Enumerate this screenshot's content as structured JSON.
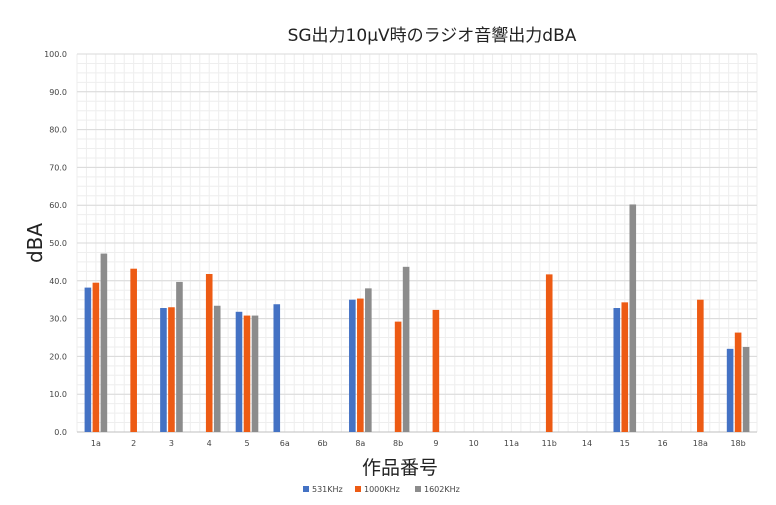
{
  "chart_data": {
    "type": "bar",
    "title": "SG出力10μV時のラジオ音響出力dBA",
    "xlabel": "作品番号",
    "ylabel": "dBA",
    "ylim": [
      0,
      100
    ],
    "yticks": [
      "0.0",
      "10.0",
      "20.0",
      "30.0",
      "40.0",
      "50.0",
      "60.0",
      "70.0",
      "80.0",
      "90.0",
      "100.0"
    ],
    "grid": true,
    "legend_position": "bottom",
    "categories": [
      "1a",
      "2",
      "3",
      "4",
      "5",
      "6a",
      "6b",
      "8a",
      "8b",
      "9",
      "10",
      "11a",
      "11b",
      "14",
      "15",
      "16",
      "18a",
      "18b"
    ],
    "series": [
      {
        "name": "531KHz",
        "color": "#4472C4",
        "values": [
          38.2,
          null,
          32.8,
          null,
          31.8,
          33.8,
          null,
          35.0,
          null,
          null,
          null,
          null,
          null,
          null,
          32.8,
          null,
          null,
          22.0
        ]
      },
      {
        "name": "1000KHz",
        "color": "#ED5B14",
        "values": [
          39.5,
          43.2,
          33.0,
          41.8,
          30.8,
          null,
          null,
          35.3,
          29.2,
          32.3,
          null,
          null,
          41.7,
          null,
          34.3,
          null,
          35.0,
          26.3
        ]
      },
      {
        "name": "1602KHz",
        "color": "#8C8C8C",
        "values": [
          47.2,
          null,
          39.7,
          33.4,
          30.8,
          null,
          null,
          38.0,
          43.7,
          null,
          null,
          null,
          null,
          null,
          60.2,
          null,
          null,
          22.5
        ]
      }
    ]
  }
}
